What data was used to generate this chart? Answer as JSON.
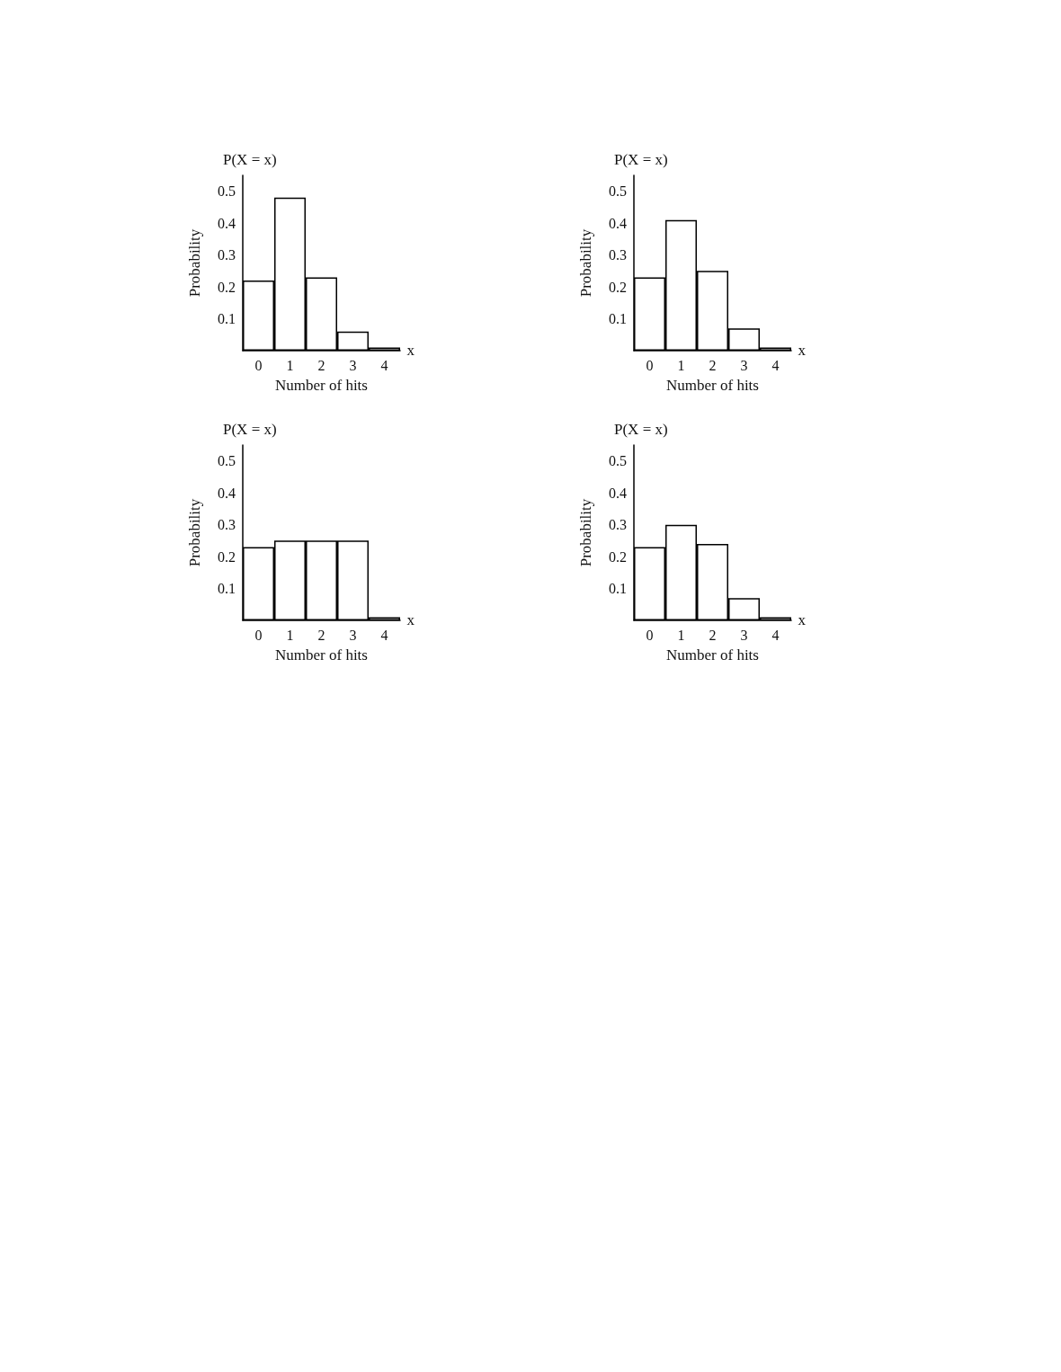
{
  "chart_data": [
    {
      "type": "bar",
      "title": "P(X = x)",
      "xlabel": "Number of hits",
      "ylabel": "Probability",
      "annotations": [
        "x"
      ],
      "categories": [
        "0",
        "1",
        "2",
        "3",
        "4"
      ],
      "values": [
        0.22,
        0.48,
        0.23,
        0.06,
        0.01
      ],
      "color": "#ffffff",
      "ylim": [
        0,
        0.55
      ],
      "yticks": [
        0.1,
        0.2,
        0.3,
        0.4,
        0.5
      ]
    },
    {
      "type": "bar",
      "title": "P(X = x)",
      "xlabel": "Number of hits",
      "ylabel": "Probability",
      "annotations": [
        "x"
      ],
      "categories": [
        "0",
        "1",
        "2",
        "3",
        "4"
      ],
      "values": [
        0.23,
        0.41,
        0.25,
        0.07,
        0.01
      ],
      "color": "#ffffff",
      "ylim": [
        0,
        0.55
      ],
      "yticks": [
        0.1,
        0.2,
        0.3,
        0.4,
        0.5
      ]
    },
    {
      "type": "bar",
      "title": "P(X = x)",
      "xlabel": "Number of hits",
      "ylabel": "Probability",
      "annotations": [
        "x"
      ],
      "categories": [
        "0",
        "1",
        "2",
        "3",
        "4"
      ],
      "values": [
        0.23,
        0.25,
        0.25,
        0.25,
        0.01
      ],
      "color": "#ffffff",
      "ylim": [
        0,
        0.55
      ],
      "yticks": [
        0.1,
        0.2,
        0.3,
        0.4,
        0.5
      ]
    },
    {
      "type": "bar",
      "title": "P(X = x)",
      "xlabel": "Number of hits",
      "ylabel": "Probability",
      "annotations": [
        "x"
      ],
      "categories": [
        "0",
        "1",
        "2",
        "3",
        "4"
      ],
      "values": [
        0.23,
        0.3,
        0.24,
        0.07,
        0.01
      ],
      "color": "#ffffff",
      "ylim": [
        0,
        0.55
      ],
      "yticks": [
        0.1,
        0.2,
        0.3,
        0.4,
        0.5
      ]
    }
  ]
}
